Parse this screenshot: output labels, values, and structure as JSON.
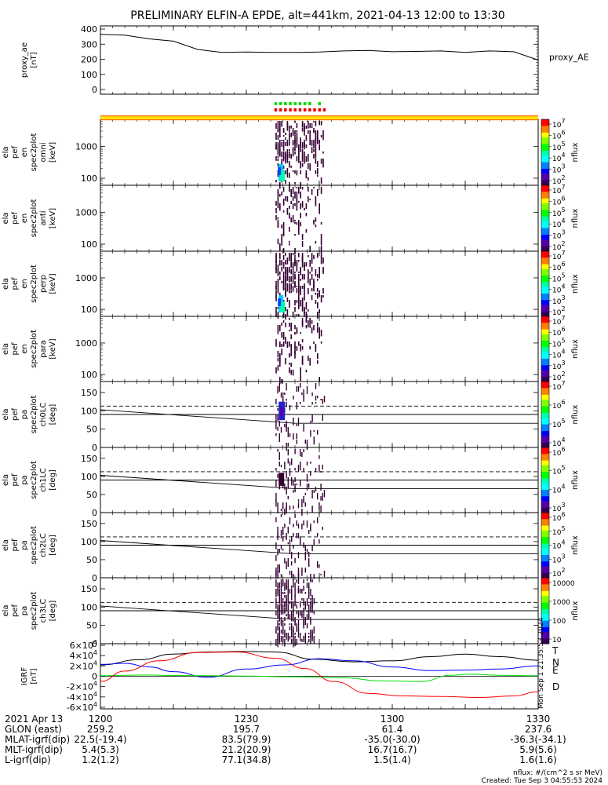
{
  "title": "PRELIMINARY ELFIN-A EPDE, alt=441km, 2021-04-13 12:00 to 13:30",
  "colors": {
    "trace": "#000000",
    "zone_orange": "#ff6a00",
    "zone_yellow": "#ffe000",
    "bar_green": "#00dd00",
    "bar_red": "#ee0000",
    "T": "#000000",
    "N": "#0000ff",
    "E": "#00dd00",
    "D": "#ff0000"
  },
  "panels": [
    {
      "id": "proxy_ae",
      "ylabel": [
        "proxy_ae",
        "[nT]"
      ],
      "right_label": "proxy_AE",
      "ticks": [
        "400",
        "300",
        "200",
        "100",
        "0"
      ]
    },
    {
      "id": "en_omni",
      "ylabel": [
        "ela",
        "pef",
        "en",
        "spec2plot",
        "omni",
        "[keV]"
      ],
      "ticks": [
        "1000",
        "100"
      ],
      "cbar": [
        "10^7",
        "10^6",
        "10^5",
        "10^4",
        "10^3",
        "10^2"
      ],
      "cbar_label": "nflux"
    },
    {
      "id": "en_anti",
      "ylabel": [
        "ela",
        "pef",
        "en",
        "spec2plot",
        "anti",
        "[keV]"
      ],
      "ticks": [
        "1000",
        "100"
      ],
      "cbar": [
        "10^7",
        "10^6",
        "10^5",
        "10^4",
        "10^3",
        "10^2"
      ],
      "cbar_label": "nflux"
    },
    {
      "id": "en_perp",
      "ylabel": [
        "ela",
        "pef",
        "en",
        "spec2plot",
        "perp",
        "[keV]"
      ],
      "ticks": [
        "1000",
        "100"
      ],
      "cbar": [
        "10^7",
        "10^6",
        "10^5",
        "10^4",
        "10^3",
        "10^2"
      ],
      "cbar_label": "nflux"
    },
    {
      "id": "en_para",
      "ylabel": [
        "ela",
        "pef",
        "en",
        "spec2plot",
        "para",
        "[keV]"
      ],
      "ticks": [
        "1000",
        "100"
      ],
      "cbar": [
        "10^7",
        "10^6",
        "10^5",
        "10^4",
        "10^3",
        "10^2"
      ],
      "cbar_label": "nflux"
    },
    {
      "id": "pa_ch0",
      "ylabel": [
        "ela",
        "pef",
        "pa",
        "spec2plot",
        "ch0LC",
        "[deg]"
      ],
      "ticks": [
        "150",
        "100",
        "50",
        "0"
      ],
      "cbar": [
        "10^7",
        "10^6",
        "10^5",
        "10^4"
      ],
      "cbar_label": "nflux"
    },
    {
      "id": "pa_ch1",
      "ylabel": [
        "ela",
        "pef",
        "pa",
        "spec2plot",
        "ch1LC",
        "[deg]"
      ],
      "ticks": [
        "150",
        "100",
        "50",
        "0"
      ],
      "cbar": [
        "10^6",
        "10^5",
        "10^4",
        "10^3"
      ],
      "cbar_label": "nflux"
    },
    {
      "id": "pa_ch2",
      "ylabel": [
        "ela",
        "pef",
        "pa",
        "spec2plot",
        "ch2LC",
        "[deg]"
      ],
      "ticks": [
        "150",
        "100",
        "50",
        "0"
      ],
      "cbar": [
        "10^6",
        "10^5",
        "10^4",
        "10^3",
        "10^2"
      ],
      "cbar_label": "nflux"
    },
    {
      "id": "pa_ch3",
      "ylabel": [
        "ela",
        "pef",
        "pa",
        "spec2plot",
        "ch3LC",
        "[deg]"
      ],
      "ticks": [
        "150",
        "100",
        "50",
        "0"
      ],
      "cbar": [
        "10000",
        "1000",
        "100",
        "10"
      ],
      "cbar_label": "nflux"
    },
    {
      "id": "igrf",
      "ylabel": [
        "IGRF",
        "[nT]"
      ],
      "ticks": [
        "6×10^4",
        "4×10^4",
        "2×10^4",
        "0",
        "-2×10^4",
        "-4×10^4",
        "-6×10^4"
      ],
      "legend": [
        "T",
        "N",
        "E",
        "D"
      ],
      "side_note": "Mon Sep  1 21:35:53 2024"
    }
  ],
  "chart_data": {
    "type": "multi-panel time series / spectrogram",
    "time_range": [
      "2021-04-13 12:00",
      "2021-04-13 13:30"
    ],
    "x_ticks": [
      "1200",
      "1230",
      "1300",
      "1330"
    ],
    "proxy_ae": {
      "x": [
        0,
        5,
        10,
        15,
        20,
        25,
        30,
        35,
        40,
        45,
        50,
        55,
        60,
        65,
        70,
        75,
        80,
        85,
        90
      ],
      "y": [
        365,
        360,
        335,
        320,
        265,
        245,
        248,
        245,
        245,
        248,
        255,
        258,
        250,
        252,
        255,
        245,
        255,
        250,
        195
      ],
      "ylim": [
        0,
        400
      ],
      "unit": "nT"
    },
    "energy_panels": {
      "ylim_keV": [
        60,
        7000
      ],
      "scale": "log",
      "science_zone_minutes": [
        36,
        46
      ]
    },
    "pitch_angle_panels": {
      "ylim_deg": [
        0,
        180
      ],
      "dashed_deg": 113,
      "loss_cone_start_deg": [
        103,
        66
      ],
      "anti_loss_cone_deg": 90
    },
    "igrf": {
      "ylim": [
        -60000,
        60000
      ],
      "series": [
        {
          "name": "T",
          "x": [
            0,
            8,
            15,
            22,
            30,
            36,
            44,
            52,
            60,
            68,
            75,
            82,
            90
          ],
          "y": [
            22000,
            32000,
            43000,
            47000,
            48000,
            47000,
            33000,
            28000,
            30000,
            38000,
            43000,
            38000,
            31000
          ]
        },
        {
          "name": "N",
          "x": [
            0,
            5,
            10,
            15,
            22,
            30,
            38,
            45,
            52,
            60,
            68,
            75,
            82,
            90
          ],
          "y": [
            23000,
            25000,
            18000,
            9000,
            -2000,
            14000,
            22000,
            34000,
            30000,
            18000,
            11000,
            12000,
            14000,
            20000
          ]
        },
        {
          "name": "E",
          "x": [
            0,
            5,
            10,
            15,
            22,
            30,
            40,
            50,
            58,
            66,
            72,
            76,
            82,
            90
          ],
          "y": [
            1000,
            2000,
            2500,
            1500,
            1000,
            500,
            -1000,
            -3000,
            -9000,
            -10000,
            2000,
            4000,
            2000,
            1000
          ]
        },
        {
          "name": "D",
          "x": [
            0,
            5,
            12,
            20,
            28,
            36,
            42,
            48,
            55,
            62,
            70,
            78,
            85,
            90
          ],
          "y": [
            -10000,
            10000,
            30000,
            46000,
            47000,
            35000,
            15000,
            -10000,
            -33000,
            -38000,
            -39000,
            -41000,
            -38000,
            -30000
          ]
        }
      ]
    }
  },
  "ephemeris": {
    "date": "2021 Apr 13",
    "rows": [
      {
        "label": "GLON (east)",
        "values": [
          "259.2",
          "195.7",
          "61.4",
          "237.6"
        ]
      },
      {
        "label": "MLAT-igrf(dip)",
        "values": [
          "22.5(-19.4)",
          "83.5(79.9)",
          "-35.0(-30.0)",
          "-36.3(-34.1)"
        ]
      },
      {
        "label": "MLT-igrf(dip)",
        "values": [
          "5.4(5.3)",
          "21.2(20.9)",
          "16.7(16.7)",
          "5.9(5.6)"
        ]
      },
      {
        "label": "L-igrf(dip)",
        "values": [
          "1.2(1.2)",
          "77.1(34.8)",
          "1.5(1.4)",
          "1.6(1.6)"
        ]
      }
    ]
  },
  "footnotes": {
    "units": "nflux: #/(cm^2 s sr MeV)",
    "created": "Created: Tue Sep  3 04:55:53 2024"
  }
}
